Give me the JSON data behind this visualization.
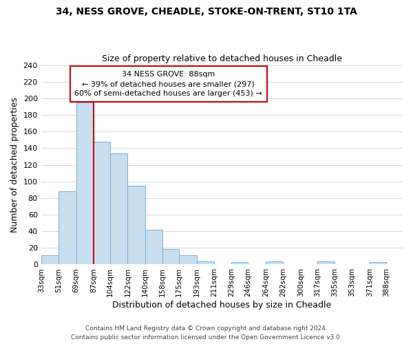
{
  "title1": "34, NESS GROVE, CHEADLE, STOKE-ON-TRENT, ST10 1TA",
  "title2": "Size of property relative to detached houses in Cheadle",
  "xlabel": "Distribution of detached houses by size in Cheadle",
  "ylabel": "Number of detached properties",
  "bin_labels": [
    "33sqm",
    "51sqm",
    "69sqm",
    "87sqm",
    "104sqm",
    "122sqm",
    "140sqm",
    "158sqm",
    "175sqm",
    "193sqm",
    "211sqm",
    "229sqm",
    "246sqm",
    "264sqm",
    "282sqm",
    "300sqm",
    "317sqm",
    "335sqm",
    "353sqm",
    "371sqm",
    "388sqm"
  ],
  "bin_edges": [
    33,
    51,
    69,
    87,
    104,
    122,
    140,
    158,
    175,
    193,
    211,
    229,
    246,
    264,
    282,
    300,
    317,
    335,
    353,
    371,
    388
  ],
  "bar_heights": [
    11,
    88,
    195,
    148,
    134,
    95,
    42,
    19,
    11,
    4,
    0,
    3,
    0,
    4,
    0,
    0,
    4,
    0,
    0,
    3,
    0
  ],
  "bar_color": "#c8dff0",
  "bar_edge_color": "#7bafd4",
  "property_line_x": 87,
  "red_line_color": "#cc0000",
  "annotation_box_edge_color": "#cc0000",
  "annotation_title": "34 NESS GROVE: 88sqm",
  "annotation_line1": "← 39% of detached houses are smaller (297)",
  "annotation_line2": "60% of semi-detached houses are larger (453) →",
  "ylim": [
    0,
    240
  ],
  "yticks": [
    0,
    20,
    40,
    60,
    80,
    100,
    120,
    140,
    160,
    180,
    200,
    220,
    240
  ],
  "grid_color": "#d0d8e8",
  "footer1": "Contains HM Land Registry data © Crown copyright and database right 2024.",
  "footer2": "Contains public sector information licensed under the Open Government Licence v3.0."
}
